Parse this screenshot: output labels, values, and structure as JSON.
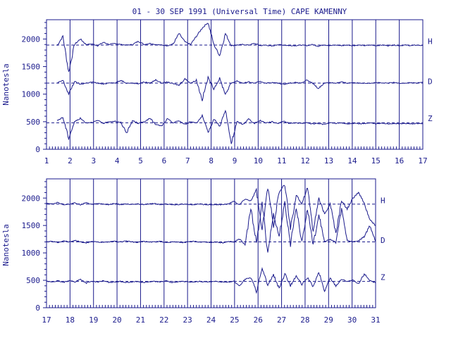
{
  "title": "01 - 30 SEP 1991 (Universal Time) CAPE KAMENNY",
  "colors": {
    "ink": "#1a1a8c",
    "background": "#ffffff"
  },
  "chart_data": [
    {
      "type": "line",
      "panel": "upper",
      "ylabel": "Nanotesla",
      "yticks": [
        0,
        500,
        1000,
        1500,
        2000
      ],
      "ylim": [
        0,
        2350
      ],
      "xlim": [
        1,
        17
      ],
      "xticks": [
        "1",
        "2",
        "3",
        "4",
        "5",
        "6",
        "7",
        "8",
        "9",
        "10",
        "11",
        "12",
        "13",
        "14",
        "15",
        "16",
        "17"
      ],
      "baselines": {
        "H": 1890,
        "D": 1200,
        "Z": 480
      },
      "series": [
        {
          "name": "H",
          "data_start": 1.45,
          "data_end": 17,
          "values": [
            1880,
            2050,
            1400,
            1900,
            2000,
            1900,
            1910,
            1880,
            1940,
            1900,
            1920,
            1900,
            1890,
            1900,
            1960,
            1900,
            1920,
            1900,
            1890,
            1880,
            1910,
            2100,
            1950,
            1900,
            2050,
            2200,
            2300,
            1900,
            1700,
            2100,
            1880,
            1890,
            1900,
            1890,
            1920,
            1880,
            1890,
            1870,
            1900,
            1890,
            1880,
            1880,
            1890,
            1880,
            1900,
            1870,
            1895,
            1880,
            1890,
            1880,
            1890,
            1880,
            1890,
            1880,
            1890,
            1880,
            1890,
            1880,
            1890,
            1880,
            1890,
            1880,
            1890,
            1880
          ]
        },
        {
          "name": "D",
          "data_start": 1.45,
          "data_end": 17,
          "values": [
            1200,
            1250,
            1000,
            1230,
            1180,
            1200,
            1220,
            1200,
            1180,
            1210,
            1200,
            1250,
            1200,
            1200,
            1190,
            1220,
            1200,
            1260,
            1200,
            1220,
            1190,
            1160,
            1280,
            1200,
            1250,
            900,
            1300,
            1100,
            1280,
            1000,
            1200,
            1240,
            1200,
            1220,
            1200,
            1230,
            1200,
            1210,
            1200,
            1180,
            1200,
            1210,
            1200,
            1250,
            1200,
            1100,
            1200,
            1210,
            1200,
            1220,
            1200,
            1210,
            1200,
            1200,
            1200,
            1210,
            1200,
            1200,
            1210,
            1200,
            1200,
            1210,
            1200,
            1220
          ]
        },
        {
          "name": "Z",
          "data_start": 1.45,
          "data_end": 17,
          "values": [
            520,
            580,
            200,
            500,
            560,
            480,
            490,
            520,
            470,
            500,
            510,
            480,
            300,
            520,
            470,
            500,
            560,
            450,
            420,
            550,
            480,
            520,
            450,
            500,
            480,
            600,
            300,
            550,
            420,
            700,
            100,
            500,
            450,
            550,
            470,
            520,
            480,
            500,
            470,
            510,
            470,
            480,
            470,
            480,
            460,
            470,
            450,
            480,
            470,
            480,
            460,
            470,
            460,
            470,
            480,
            460,
            470,
            460,
            470,
            460,
            470,
            460,
            470,
            460
          ]
        }
      ],
      "legend": [
        "H",
        "D",
        "Z"
      ]
    },
    {
      "type": "line",
      "panel": "lower",
      "ylabel": "Nanotesla",
      "yticks": [
        0,
        500,
        1000,
        1500,
        2000
      ],
      "ylim": [
        0,
        2350
      ],
      "xlim": [
        17,
        31
      ],
      "xticks": [
        "17",
        "18",
        "19",
        "20",
        "21",
        "22",
        "23",
        "24",
        "25",
        "26",
        "27",
        "28",
        "29",
        "30",
        "31"
      ],
      "baselines": {
        "H": 1890,
        "D": 1200,
        "Z": 480
      },
      "series": [
        {
          "name": "H",
          "data_start": 17,
          "data_end": 31,
          "values": [
            1900,
            1890,
            1920,
            1880,
            1890,
            1910,
            1880,
            1920,
            1880,
            1900,
            1890,
            1880,
            1900,
            1880,
            1890,
            1880,
            1890,
            1880,
            1890,
            1900,
            1880,
            1890,
            1880,
            1880,
            1890,
            1880,
            1880,
            1890,
            1880,
            1880,
            1880,
            1880,
            1890,
            1940,
            1880,
            1980,
            1950,
            2150,
            1400,
            2200,
            1500,
            2100,
            2250,
            1450,
            2050,
            1900,
            2200,
            1400,
            2000,
            1700,
            1900,
            1350,
            1950,
            1800,
            2000,
            2100,
            1900,
            1600,
            1500
          ]
        },
        {
          "name": "D",
          "data_start": 17,
          "data_end": 31,
          "values": [
            1200,
            1210,
            1190,
            1220,
            1200,
            1230,
            1200,
            1180,
            1210,
            1200,
            1190,
            1200,
            1210,
            1200,
            1220,
            1200,
            1190,
            1210,
            1200,
            1200,
            1210,
            1190,
            1200,
            1200,
            1190,
            1200,
            1210,
            1200,
            1200,
            1190,
            1200,
            1180,
            1210,
            1200,
            1250,
            1150,
            1800,
            1200,
            1900,
            1000,
            1700,
            1300,
            1900,
            1150,
            1850,
            1200,
            1800,
            1150,
            1700,
            1200,
            1250,
            1190,
            1800,
            1230,
            1200,
            1220,
            1300,
            1500,
            1200
          ]
        },
        {
          "name": "Z",
          "data_start": 17,
          "data_end": 31,
          "values": [
            480,
            470,
            490,
            460,
            500,
            470,
            520,
            450,
            480,
            470,
            490,
            460,
            470,
            480,
            460,
            470,
            480,
            460,
            470,
            480,
            470,
            490,
            460,
            470,
            480,
            470,
            470,
            480,
            470,
            470,
            480,
            470,
            470,
            480,
            400,
            520,
            550,
            300,
            700,
            420,
            600,
            350,
            620,
            400,
            580,
            420,
            550,
            380,
            650,
            300,
            540,
            400,
            520,
            480,
            500,
            430,
            620,
            500,
            450
          ]
        }
      ],
      "legend": [
        "H",
        "D",
        "Z"
      ]
    }
  ]
}
